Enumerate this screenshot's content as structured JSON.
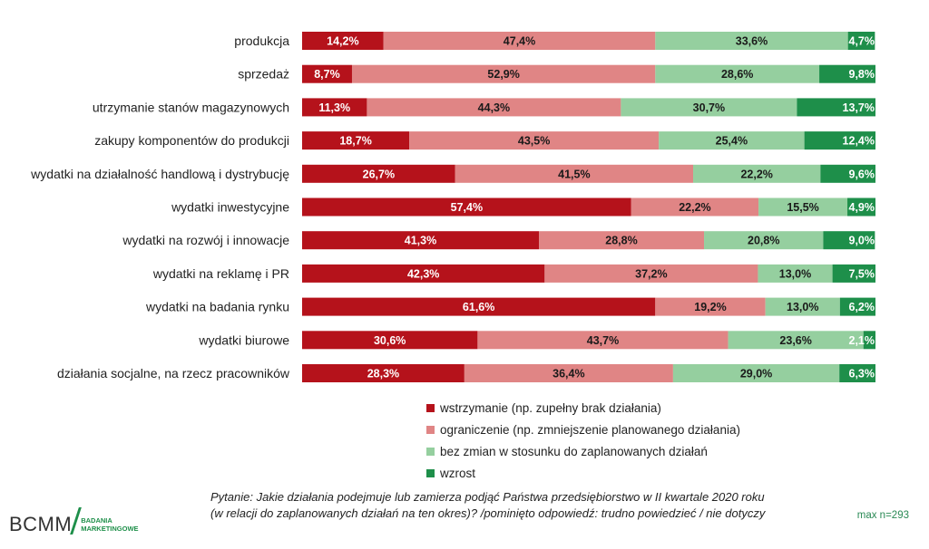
{
  "chart_data": {
    "type": "bar",
    "orientation": "horizontal",
    "stacked": true,
    "xlim": [
      0,
      100
    ],
    "categories": [
      "produkcja",
      "sprzedaż",
      "utrzymanie stanów magazynowych",
      "zakupy komponentów do produkcji",
      "wydatki na działalność handlową i dystrybucję",
      "wydatki inwestycyjne",
      "wydatki na rozwój i innowacje",
      "wydatki na reklamę i PR",
      "wydatki na badania rynku",
      "wydatki biurowe",
      "działania socjalne, na rzecz pracowników"
    ],
    "series": [
      {
        "name": "wstrzymanie (np. zupełny brak działania)",
        "color": "#b5121b",
        "values": [
          14.2,
          8.7,
          11.3,
          18.7,
          26.7,
          57.4,
          41.3,
          42.3,
          61.6,
          30.6,
          28.3
        ],
        "labels": [
          "14,2%",
          "8,7%",
          "11,3%",
          "18,7%",
          "26,7%",
          "57,4%",
          "41,3%",
          "42,3%",
          "61,6%",
          "30,6%",
          "28,3%"
        ]
      },
      {
        "name": "ograniczenie (np. zmniejszenie planowanego działania)",
        "color": "#e08585",
        "values": [
          47.4,
          52.9,
          44.3,
          43.5,
          41.5,
          22.2,
          28.8,
          37.2,
          19.2,
          43.7,
          36.4
        ],
        "labels": [
          "47,4%",
          "52,9%",
          "44,3%",
          "43,5%",
          "41,5%",
          "22,2%",
          "28,8%",
          "37,2%",
          "19,2%",
          "43,7%",
          "36,4%"
        ]
      },
      {
        "name": "bez zmian w stosunku do zaplanowanych działań",
        "color": "#95cf9f",
        "values": [
          33.6,
          28.6,
          30.7,
          25.4,
          22.2,
          15.5,
          20.8,
          13.0,
          13.0,
          23.6,
          29.0
        ],
        "labels": [
          "33,6%",
          "28,6%",
          "30,7%",
          "25,4%",
          "22,2%",
          "15,5%",
          "20,8%",
          "13,0%",
          "13,0%",
          "23,6%",
          "29,0%"
        ]
      },
      {
        "name": "wzrost",
        "color": "#1e8f4a",
        "values": [
          4.7,
          9.8,
          13.7,
          12.4,
          9.6,
          4.9,
          9.0,
          7.5,
          6.2,
          2.1,
          6.3
        ],
        "labels": [
          "4,7%",
          "9,8%",
          "13,7%",
          "12,4%",
          "9,6%",
          "4,9%",
          "9,0%",
          "7,5%",
          "6,2%",
          "2,1%",
          "6,3%"
        ]
      }
    ],
    "legend_position": "bottom"
  },
  "footer": {
    "question_line1": "Pytanie: Jakie działania podejmuje lub zamierza podjąć Państwa przedsiębiorstwo w II kwartale 2020 roku",
    "question_line2": "(w relacji do zaplanowanych działań na ten okres)? /pominięto odpowiedź: trudno powiedzieć / nie dotyczy",
    "max_n": "max n=293"
  },
  "logo": {
    "main": "BCMM",
    "sub_line1": "BADANIA",
    "sub_line2": "MARKETINGOWE",
    "color": "#1e8f4a"
  }
}
